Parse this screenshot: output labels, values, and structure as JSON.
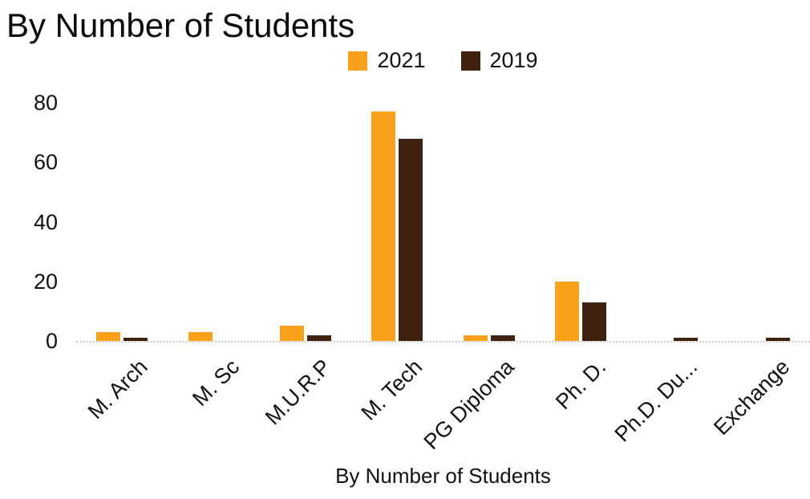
{
  "title": "By Number of Students",
  "legend": {
    "position": "top",
    "items": [
      {
        "label": "2021",
        "color": "#F9A11B"
      },
      {
        "label": "2019",
        "color": "#40200F"
      }
    ]
  },
  "chart_data": {
    "type": "bar",
    "title": "By Number of Students",
    "xlabel": "By Number of Students",
    "ylabel": "",
    "ylim": [
      0,
      80
    ],
    "yticks": [
      0,
      20,
      40,
      60,
      80
    ],
    "grid": false,
    "legend_position": "top",
    "categories": [
      "M. Arch",
      "M. Sc",
      "M.U.R.P",
      "M. Tech",
      "PG Diploma",
      "Ph. D.",
      "Ph.D. Du...",
      "Exchange"
    ],
    "series": [
      {
        "name": "2021",
        "color": "#F9A11B",
        "values": [
          3,
          3,
          5,
          77,
          2,
          20,
          0,
          0
        ]
      },
      {
        "name": "2019",
        "color": "#40200F",
        "values": [
          1,
          0,
          2,
          68,
          2,
          13,
          1,
          1
        ]
      }
    ]
  }
}
